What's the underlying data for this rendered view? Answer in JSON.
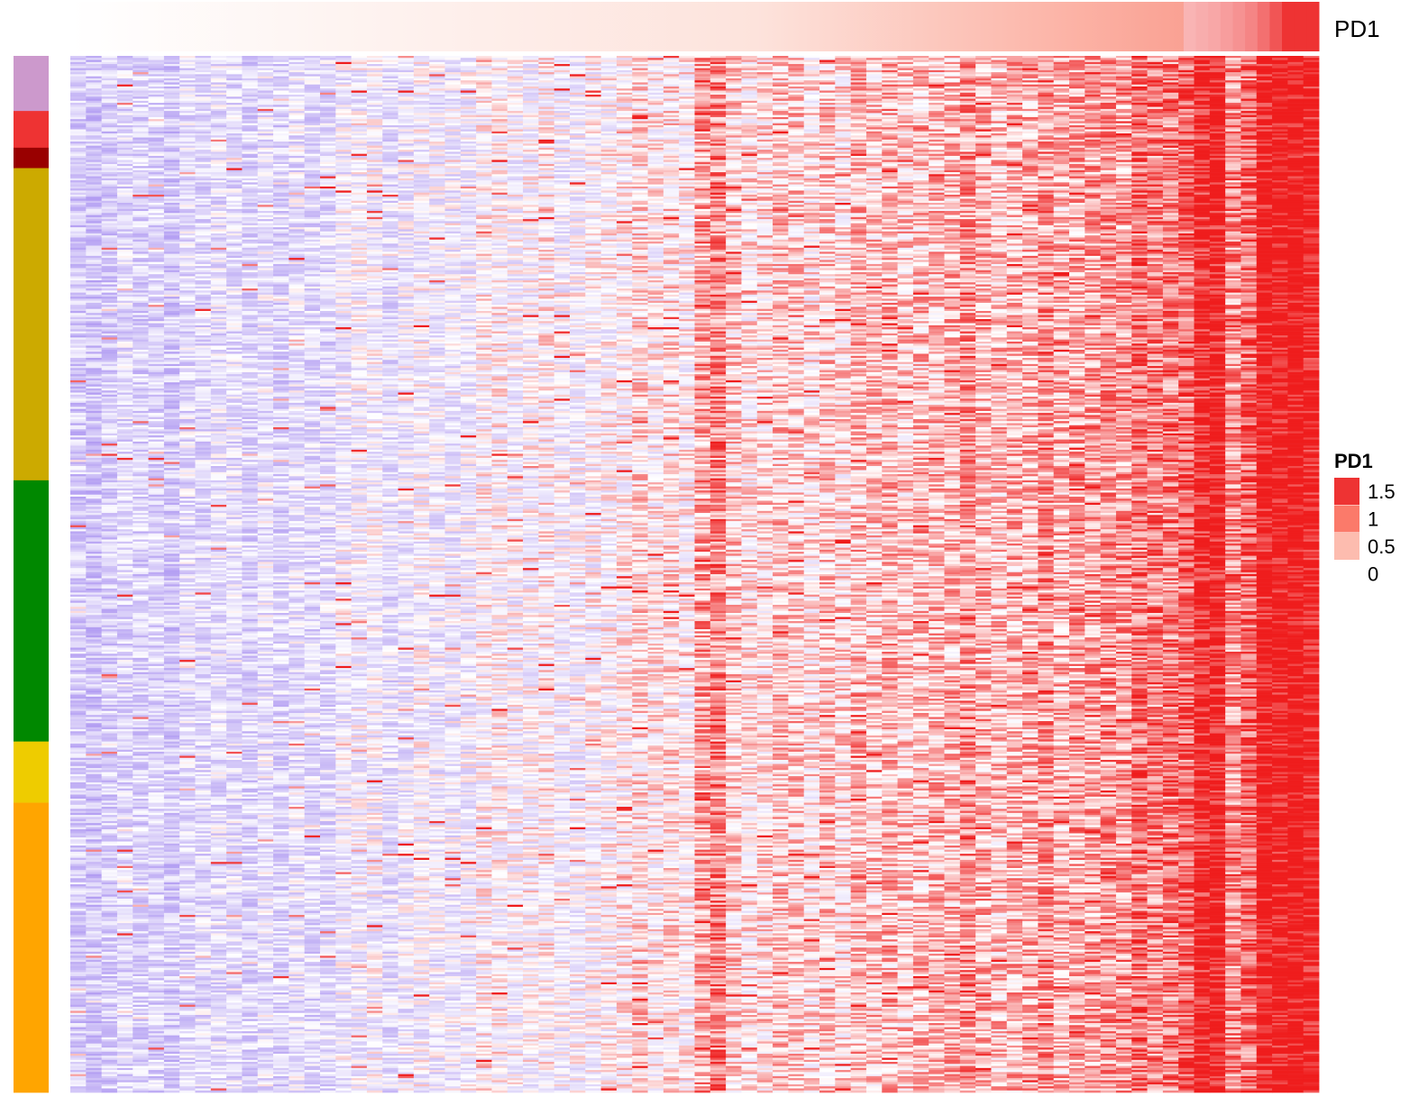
{
  "chart_data": {
    "type": "heatmap",
    "annotation_label": "PD1",
    "legend": {
      "title": "PD1",
      "placement": "right",
      "entries": [
        {
          "label": "1.5",
          "color": "#ee3333"
        },
        {
          "label": "1",
          "color": "#fb7a6a"
        },
        {
          "label": "0.5",
          "color": "#fdbcaf"
        },
        {
          "label": "0",
          "color": "#ffffff"
        }
      ]
    },
    "pd1_range": [
      0,
      1.5
    ],
    "pd1_annotation_blocks": [
      0.0,
      0.02,
      0.04,
      0.06,
      0.08,
      0.1,
      0.12,
      0.14,
      0.16,
      0.18,
      0.2,
      0.23,
      0.26,
      0.29,
      0.32,
      0.35,
      0.38,
      0.42,
      0.46,
      0.5,
      0.55,
      0.6,
      0.65,
      0.72,
      0.8,
      0.9,
      1.05,
      1.25,
      1.5,
      1.5,
      1.5
    ],
    "row_groups": [
      {
        "color": "#cc99cc",
        "rows": 27
      },
      {
        "color": "#ee3333",
        "rows": 18
      },
      {
        "color": "#990000",
        "rows": 10
      },
      {
        "color": "#ccaa00",
        "rows": 153
      },
      {
        "color": "#008800",
        "rows": 128
      },
      {
        "color": "#eecc00",
        "rows": 30
      },
      {
        "color": "#ffa500",
        "rows": 142
      }
    ],
    "cell_color_scale": {
      "low": "#a58cf0",
      "mid": "#ffffff",
      "high": "#ee1111"
    }
  }
}
